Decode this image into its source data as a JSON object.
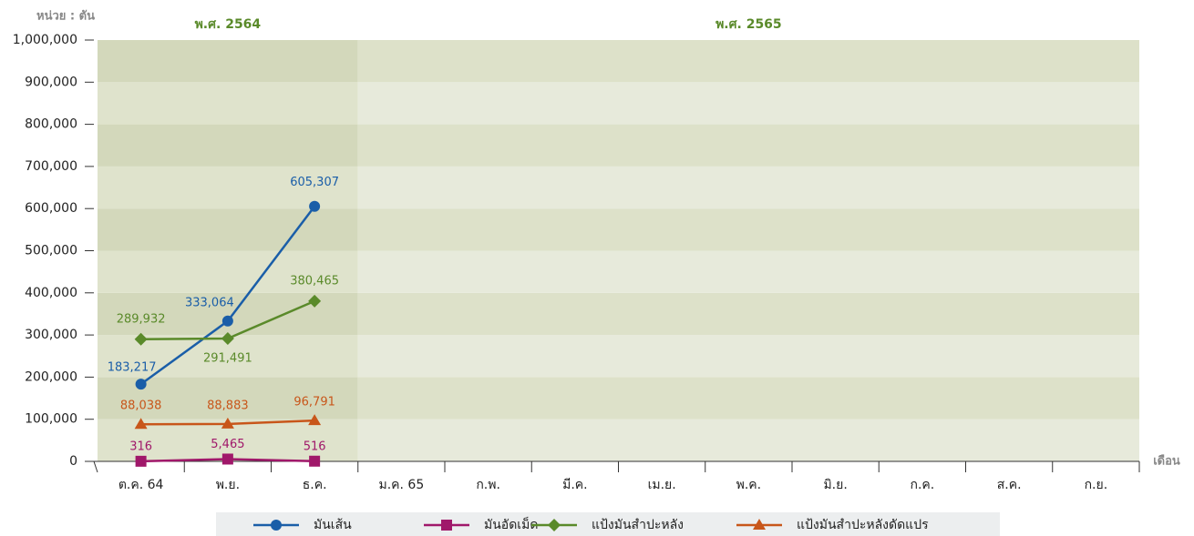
{
  "chart_data": {
    "type": "line",
    "unit_label": "หน่วย : ตัน",
    "x_label": "เดือน",
    "periods": [
      {
        "label": "พ.ศ. 2564",
        "span": 3
      },
      {
        "label": "พ.ศ. 2565",
        "span": 9
      }
    ],
    "categories": [
      "ต.ค. 64",
      "พ.ย.",
      "ธ.ค.",
      "ม.ค. 65",
      "ก.พ.",
      "มี.ค.",
      "เม.ย.",
      "พ.ค.",
      "มิ.ย.",
      "ก.ค.",
      "ส.ค.",
      "ก.ย."
    ],
    "series": [
      {
        "name": "มันเส้น",
        "color": "#1a5ea8",
        "marker": "circle",
        "values": [
          183217,
          333064,
          605307,
          null,
          null,
          null,
          null,
          null,
          null,
          null,
          null,
          null
        ],
        "value_labels": [
          "183,217",
          "333,064",
          "605,307",
          null,
          null,
          null,
          null,
          null,
          null,
          null,
          null,
          null
        ]
      },
      {
        "name": "มันอัดเม็ด",
        "color": "#a0186a",
        "marker": "square",
        "values": [
          316,
          5465,
          516,
          null,
          null,
          null,
          null,
          null,
          null,
          null,
          null,
          null
        ],
        "value_labels": [
          "316",
          "5,465",
          "516",
          null,
          null,
          null,
          null,
          null,
          null,
          null,
          null,
          null
        ]
      },
      {
        "name": "แป้งมันสำปะหลัง",
        "color": "#5a8a2a",
        "marker": "diamond",
        "values": [
          289932,
          291491,
          380465,
          null,
          null,
          null,
          null,
          null,
          null,
          null,
          null,
          null
        ],
        "value_labels": [
          "289,932",
          "291,491",
          "380,465",
          null,
          null,
          null,
          null,
          null,
          null,
          null,
          null,
          null
        ]
      },
      {
        "name": "แป้งมันสำปะหลังดัดแปร",
        "color": "#c8561a",
        "marker": "triangle",
        "values": [
          88038,
          88883,
          96791,
          null,
          null,
          null,
          null,
          null,
          null,
          null,
          null,
          null
        ],
        "value_labels": [
          "88,038",
          "88,883",
          "96,791",
          null,
          null,
          null,
          null,
          null,
          null,
          null,
          null,
          null
        ]
      }
    ],
    "ylim": [
      0,
      1000000
    ],
    "yticks": [
      0,
      {
        "value": 100000,
        "label": "100,000"
      },
      {
        "value": 200000,
        "label": "200,000"
      },
      {
        "value": 300000,
        "label": "300,000"
      },
      {
        "value": 400000,
        "label": "400,000"
      },
      {
        "value": 500000,
        "label": "500,000"
      },
      {
        "value": 600000,
        "label": "600,000"
      },
      {
        "value": 700000,
        "label": "700,000"
      },
      {
        "value": 800000,
        "label": "800,000"
      },
      {
        "value": 900000,
        "label": "900,000"
      },
      {
        "value": 1000000,
        "label": "1,000,000"
      }
    ],
    "grid": true,
    "legend": "bottom"
  }
}
